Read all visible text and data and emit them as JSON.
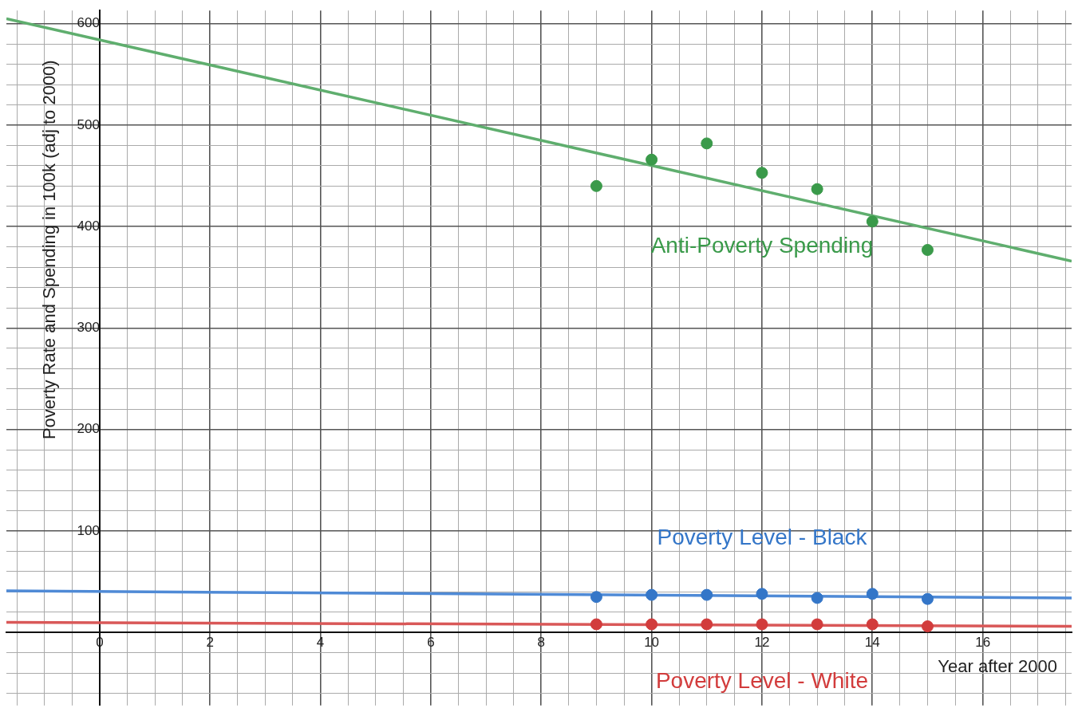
{
  "chart_data": {
    "type": "scatter",
    "xlabel": "Year after 2000",
    "ylabel": "Poverty Rate and Spending in 100k (adj to 2000)",
    "xlim": [
      -1.69,
      17.61
    ],
    "ylim": [
      -72,
      613
    ],
    "xticks": [
      {
        "value": -1.5,
        "label": null
      },
      {
        "value": -1,
        "label": null
      },
      {
        "value": -0.5,
        "label": null
      },
      0,
      {
        "value": 0.5,
        "label": null
      },
      {
        "value": 1,
        "label": null
      },
      {
        "value": 1.5,
        "label": null
      },
      2,
      {
        "value": 2.5,
        "label": null
      },
      {
        "value": 3,
        "label": null
      },
      {
        "value": 3.5,
        "label": null
      },
      4,
      {
        "value": 4.5,
        "label": null
      },
      {
        "value": 5,
        "label": null
      },
      {
        "value": 5.5,
        "label": null
      },
      6,
      {
        "value": 6.5,
        "label": null
      },
      {
        "value": 7,
        "label": null
      },
      {
        "value": 7.5,
        "label": null
      },
      8,
      {
        "value": 8.5,
        "label": null
      },
      {
        "value": 9,
        "label": null
      },
      {
        "value": 9.5,
        "label": null
      },
      10,
      {
        "value": 10.5,
        "label": null
      },
      {
        "value": 11,
        "label": null
      },
      {
        "value": 11.5,
        "label": null
      },
      12,
      {
        "value": 12.5,
        "label": null
      },
      {
        "value": 13,
        "label": null
      },
      {
        "value": 13.5,
        "label": null
      },
      14,
      {
        "value": 14.5,
        "label": null
      },
      {
        "value": 15,
        "label": null
      },
      {
        "value": 15.5,
        "label": null
      },
      16,
      {
        "value": 16.5,
        "label": null
      },
      {
        "value": 17,
        "label": null
      },
      {
        "value": 17.5,
        "label": null
      }
    ],
    "yticks": [
      {
        "value": -60,
        "label": null
      },
      {
        "value": -40,
        "label": null
      },
      {
        "value": -20,
        "label": null
      },
      {
        "value": 20,
        "label": null
      },
      {
        "value": 40,
        "label": null
      },
      {
        "value": 60,
        "label": null
      },
      {
        "value": 80,
        "label": null
      },
      100,
      {
        "value": 120,
        "label": null
      },
      {
        "value": 140,
        "label": null
      },
      {
        "value": 160,
        "label": null
      },
      {
        "value": 180,
        "label": null
      },
      200,
      {
        "value": 220,
        "label": null
      },
      {
        "value": 240,
        "label": null
      },
      {
        "value": 260,
        "label": null
      },
      {
        "value": 280,
        "label": null
      },
      300,
      {
        "value": 320,
        "label": null
      },
      {
        "value": 340,
        "label": null
      },
      {
        "value": 360,
        "label": null
      },
      {
        "value": 380,
        "label": null
      },
      400,
      {
        "value": 420,
        "label": null
      },
      {
        "value": 440,
        "label": null
      },
      {
        "value": 460,
        "label": null
      },
      {
        "value": 480,
        "label": null
      },
      500,
      {
        "value": 520,
        "label": null
      },
      {
        "value": 540,
        "label": null
      },
      {
        "value": 560,
        "label": null
      },
      {
        "value": 580,
        "label": null
      },
      600
    ],
    "grid": true,
    "marker": "circle",
    "series": [
      {
        "name": "Anti-Poverty Spending",
        "color": "#3a9a4a",
        "x": [
          9,
          10,
          11,
          12,
          13,
          14,
          15
        ],
        "values": [
          440,
          466,
          482,
          453,
          437,
          405,
          377
        ]
      },
      {
        "type": "line",
        "marker": "none",
        "color": "#5fae6e",
        "x": [
          -1.69,
          17.61
        ],
        "values": [
          605,
          366
        ]
      },
      {
        "name": "Poverty Level - Black",
        "color": "#3476c8",
        "x": [
          9,
          10,
          11,
          12,
          13,
          14,
          15
        ],
        "values": [
          35,
          37,
          37,
          38,
          34,
          38,
          33
        ]
      },
      {
        "type": "line",
        "marker": "none",
        "color": "#4f8ad6",
        "x": [
          -1.69,
          17.61
        ],
        "values": [
          41,
          34
        ]
      },
      {
        "name": "Poverty Level - White",
        "color": "#d23c3c",
        "x": [
          9,
          10,
          11,
          12,
          13,
          14,
          15
        ],
        "values": [
          8,
          8,
          8,
          8,
          8,
          8,
          6
        ]
      },
      {
        "type": "line",
        "marker": "none",
        "color": "#d95858",
        "x": [
          -1.69,
          17.61
        ],
        "values": [
          10,
          6
        ]
      }
    ]
  }
}
